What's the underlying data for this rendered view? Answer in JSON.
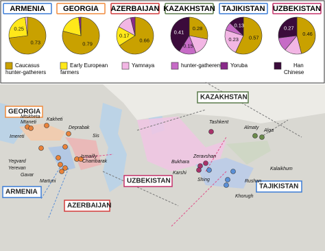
{
  "pies": [
    {
      "title": "ARMENIA",
      "values": [
        0.73,
        0.25,
        0.02
      ],
      "value_labels": [
        "0.73",
        "0.25",
        null
      ],
      "components": [
        0,
        1,
        2
      ]
    },
    {
      "title": "GEORGIA",
      "values": [
        0.79,
        0.19,
        0.02
      ],
      "value_labels": [
        "0.79",
        null,
        null
      ],
      "components": [
        0,
        1,
        4
      ]
    },
    {
      "title": "AZERBAIJAN",
      "values": [
        0.66,
        0.17,
        0.13,
        0.04
      ],
      "value_labels": [
        "0.66",
        "0.17",
        null,
        null
      ],
      "components": [
        0,
        1,
        2,
        4
      ]
    },
    {
      "title": "KAZAKHSTAN",
      "values": [
        0.28,
        0.16,
        0.15,
        0.41
      ],
      "value_labels": [
        "0.28",
        null,
        "0.15",
        "0.41"
      ],
      "components": [
        0,
        2,
        3,
        5
      ]
    },
    {
      "title": "TAJIKISTAN",
      "values": [
        0.57,
        0.23,
        0.07,
        0.13
      ],
      "value_labels": [
        "0.57",
        "0.23",
        null,
        "0.13"
      ],
      "components": [
        0,
        2,
        3,
        5
      ]
    },
    {
      "title": "UZBEKISTAN",
      "values": [
        0.46,
        0.15,
        0.12,
        0.27
      ],
      "value_labels": [
        "0.46",
        null,
        null,
        "0.27"
      ],
      "components": [
        0,
        2,
        3,
        5
      ]
    }
  ],
  "legend": [
    {
      "lines": [
        "Caucasus",
        "hunter-gatherers"
      ],
      "color": "#c9a100"
    },
    {
      "lines": [
        "Early European",
        "farmers"
      ],
      "color": "#ffe81a"
    },
    {
      "lines": [
        "Yamnaya"
      ],
      "color": "#f2b6e4"
    },
    {
      "lines": [
        "hunter-gatherers"
      ],
      "color": "#c66bc6"
    },
    {
      "lines": [
        "Yoruba"
      ],
      "color": "#8a2a8a"
    },
    {
      "lines": [
        "Han",
        "Chinese"
      ],
      "color": "#3b0b3b"
    }
  ],
  "map": {
    "countries": [
      "GEORGIA",
      "ARMENIA",
      "AZERBAIJAN",
      "KAZAKHSTAN",
      "UZBEKISTAN",
      "TAJIKISTAN"
    ],
    "cities": [
      "Mtskheta",
      "Mtaneti",
      "Kakheti",
      "Deprabak",
      "Imereti",
      "Sis",
      "Ismailly",
      "Chambarak",
      "Yegvard",
      "Yerevan",
      "Gavar",
      "Martuni",
      "Tashkent",
      "Almaty",
      "Alga",
      "Zeravshan",
      "Bukhara",
      "Shing",
      "Karshi",
      "Kalaikhum",
      "Rushan",
      "Khorugh"
    ]
  }
}
